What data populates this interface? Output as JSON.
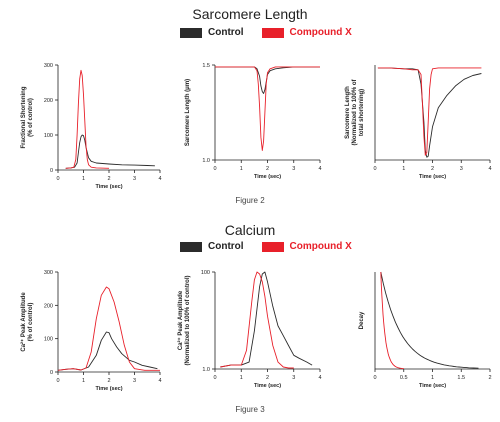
{
  "colors": {
    "control": "#2b2b2b",
    "compound": "#e8202a"
  },
  "figure2": {
    "title": "Sarcomere Length",
    "legend": {
      "control": "Control",
      "compound": "Compound X"
    },
    "caption": "Figure 2"
  },
  "figure3": {
    "title": "Calcium",
    "legend": {
      "control": "Control",
      "compound": "Compound X"
    },
    "caption": "Figure 3"
  },
  "chart_data": [
    {
      "type": "line",
      "xlabel": "Time (sec)",
      "ylabel": [
        "Fractional Shortening",
        "(% of control)"
      ],
      "xlim": [
        0,
        4
      ],
      "ylim": [
        0,
        300
      ],
      "xticks": [
        0,
        1,
        2,
        3,
        4
      ],
      "xtick_labels": [
        "0",
        "1",
        "2",
        "3",
        "4"
      ],
      "yticks": [
        0,
        100,
        200,
        300
      ],
      "ytick_labels": [
        "0",
        "100",
        "200",
        "300"
      ],
      "series": [
        {
          "key": "control",
          "x": [
            0.3,
            0.5,
            0.65,
            0.75,
            0.8,
            0.85,
            0.9,
            0.95,
            1.0,
            1.05,
            1.1,
            1.2,
            1.3,
            1.5,
            2.0,
            2.5,
            3.0,
            3.5,
            3.8
          ],
          "y": [
            5,
            6,
            8,
            20,
            50,
            78,
            95,
            100,
            98,
            85,
            65,
            35,
            25,
            20,
            17,
            15,
            14,
            13,
            12
          ]
        },
        {
          "key": "compound",
          "x": [
            0.3,
            0.5,
            0.62,
            0.7,
            0.75,
            0.8,
            0.85,
            0.9,
            0.95,
            1.0,
            1.05,
            1.1,
            1.15,
            1.2,
            1.3,
            1.5,
            2.0
          ],
          "y": [
            5,
            6,
            8,
            30,
            100,
            190,
            260,
            285,
            270,
            215,
            140,
            70,
            30,
            15,
            8,
            6,
            5
          ]
        }
      ]
    },
    {
      "type": "line",
      "xlabel": "Time (sec)",
      "ylabel": [
        "Sarcomere Length (μm)"
      ],
      "xlim": [
        0,
        4
      ],
      "ylim": [
        1.0,
        1.5
      ],
      "xticks": [
        0,
        1,
        2,
        3,
        4
      ],
      "xtick_labels": [
        "0",
        "1",
        "2",
        "3",
        "4"
      ],
      "yticks": [
        1.0,
        1.5
      ],
      "ytick_labels": [
        "1.0",
        "1.5"
      ],
      "series": [
        {
          "key": "control",
          "x": [
            0,
            0.5,
            1.0,
            1.5,
            1.6,
            1.7,
            1.75,
            1.8,
            1.85,
            1.9,
            1.95,
            2.0,
            2.1,
            2.3,
            2.6,
            3.0,
            3.5,
            4.0
          ],
          "y": [
            1.49,
            1.49,
            1.49,
            1.49,
            1.48,
            1.44,
            1.39,
            1.36,
            1.35,
            1.37,
            1.41,
            1.45,
            1.47,
            1.48,
            1.485,
            1.49,
            1.49,
            1.49
          ]
        },
        {
          "key": "compound",
          "x": [
            0,
            0.5,
            1.0,
            1.5,
            1.6,
            1.65,
            1.7,
            1.75,
            1.8,
            1.85,
            1.9,
            1.95,
            2.0,
            2.1,
            2.3,
            3.0,
            4.0
          ],
          "y": [
            1.49,
            1.49,
            1.49,
            1.49,
            1.47,
            1.4,
            1.28,
            1.12,
            1.05,
            1.1,
            1.25,
            1.4,
            1.46,
            1.48,
            1.49,
            1.49,
            1.49
          ]
        }
      ]
    },
    {
      "type": "line",
      "ylabel": [
        "Sarcomere Length",
        "(Normalized to 100% of",
        "total shortening)"
      ],
      "xlabel": "Time (sec)",
      "xlim": [
        0,
        4
      ],
      "ylim": [
        0,
        100
      ],
      "xticks": [
        0,
        1,
        2,
        3,
        4
      ],
      "xtick_labels": [
        "0",
        "1",
        "2",
        "3",
        "4"
      ],
      "yticks": [],
      "ytick_labels": [],
      "series": [
        {
          "key": "control",
          "x": [
            0.1,
            0.5,
            1.0,
            1.3,
            1.5,
            1.6,
            1.7,
            1.75,
            1.8,
            1.85,
            1.9,
            2.0,
            2.2,
            2.5,
            2.8,
            3.1,
            3.4,
            3.7
          ],
          "y": [
            97,
            97,
            96,
            96,
            95,
            80,
            40,
            10,
            3,
            4,
            15,
            35,
            55,
            68,
            78,
            85,
            89,
            91
          ]
        },
        {
          "key": "compound",
          "x": [
            0.1,
            0.5,
            1.0,
            1.3,
            1.5,
            1.6,
            1.65,
            1.7,
            1.75,
            1.8,
            1.85,
            1.9,
            1.95,
            2.0,
            2.2,
            2.5,
            3.0,
            3.7
          ],
          "y": [
            97,
            97,
            96,
            95,
            95,
            90,
            60,
            25,
            5,
            8,
            40,
            75,
            90,
            96,
            97,
            97,
            97,
            97
          ]
        }
      ]
    },
    {
      "type": "line",
      "xlabel": "Time (sec)",
      "ylabel": [
        "Ca²⁺ Peak Amplitude",
        "(% of control)"
      ],
      "xlim": [
        0,
        4
      ],
      "ylim": [
        0,
        300
      ],
      "xticks": [
        0,
        1,
        2,
        3,
        4
      ],
      "xtick_labels": [
        "0",
        "1",
        "2",
        "3",
        "4"
      ],
      "yticks": [
        0,
        100,
        200,
        300
      ],
      "ytick_labels": [
        "0",
        "100",
        "200",
        "300"
      ],
      "series": [
        {
          "key": "control",
          "x": [
            0,
            0.3,
            0.6,
            0.9,
            1.2,
            1.5,
            1.7,
            1.9,
            2.0,
            2.1,
            2.3,
            2.5,
            2.8,
            3.0,
            3.3,
            3.6,
            3.9
          ],
          "y": [
            5,
            8,
            10,
            6,
            15,
            50,
            95,
            120,
            118,
            100,
            75,
            55,
            35,
            30,
            20,
            15,
            10
          ]
        },
        {
          "key": "compound",
          "x": [
            0,
            0.3,
            0.6,
            0.9,
            1.1,
            1.3,
            1.5,
            1.7,
            1.9,
            2.0,
            2.2,
            2.4,
            2.6,
            2.8,
            3.0,
            3.4,
            3.8,
            4.0
          ],
          "y": [
            5,
            8,
            10,
            6,
            12,
            60,
            160,
            230,
            255,
            250,
            210,
            150,
            80,
            30,
            10,
            5,
            5,
            5
          ]
        }
      ]
    },
    {
      "type": "line",
      "xlabel": "Time (sec)",
      "ylabel": [
        "Ca²⁺ Peak Amplitude",
        "(Normalized to 100% of control)"
      ],
      "xlim": [
        0,
        4
      ],
      "ylim": [
        1.0,
        100
      ],
      "xticks": [
        0,
        1,
        2,
        3,
        4
      ],
      "xtick_labels": [
        "0",
        "1",
        "2",
        "3",
        "4"
      ],
      "yticks": [
        1.0,
        100
      ],
      "ytick_labels": [
        "1.0",
        "100"
      ],
      "series": [
        {
          "key": "control",
          "x": [
            0.2,
            0.6,
            1.0,
            1.3,
            1.5,
            1.7,
            1.8,
            1.9,
            2.0,
            2.2,
            2.4,
            2.6,
            2.8,
            3.0,
            3.2,
            3.5,
            3.7
          ],
          "y": [
            3,
            5,
            5,
            8,
            40,
            85,
            98,
            100,
            90,
            65,
            45,
            35,
            25,
            15,
            12,
            8,
            5
          ]
        },
        {
          "key": "compound",
          "x": [
            0.2,
            0.6,
            1.0,
            1.2,
            1.4,
            1.5,
            1.6,
            1.7,
            1.8,
            1.9,
            2.0,
            2.2,
            2.4,
            2.6,
            2.8,
            3.0
          ],
          "y": [
            3,
            5,
            5,
            20,
            70,
            92,
            100,
            98,
            90,
            75,
            55,
            25,
            8,
            3,
            2,
            2
          ]
        }
      ]
    },
    {
      "type": "line",
      "xlabel": "Time (sec)",
      "ylabel": [
        "Decay"
      ],
      "xlim": [
        0,
        2
      ],
      "ylim": [
        0,
        100
      ],
      "xticks": [
        0,
        0.5,
        1,
        1.5,
        2
      ],
      "xtick_labels": [
        "0",
        "0.5",
        "1",
        "1.5",
        "2"
      ],
      "yticks": [],
      "ytick_labels": [],
      "series": [
        {
          "key": "control",
          "decay": {
            "x0": 0.1,
            "x1": 1.8,
            "tau": 0.35,
            "a": 100
          }
        },
        {
          "key": "compound",
          "decay": {
            "x0": 0.1,
            "x1": 0.5,
            "tau": 0.07,
            "a": 100
          }
        }
      ]
    }
  ]
}
